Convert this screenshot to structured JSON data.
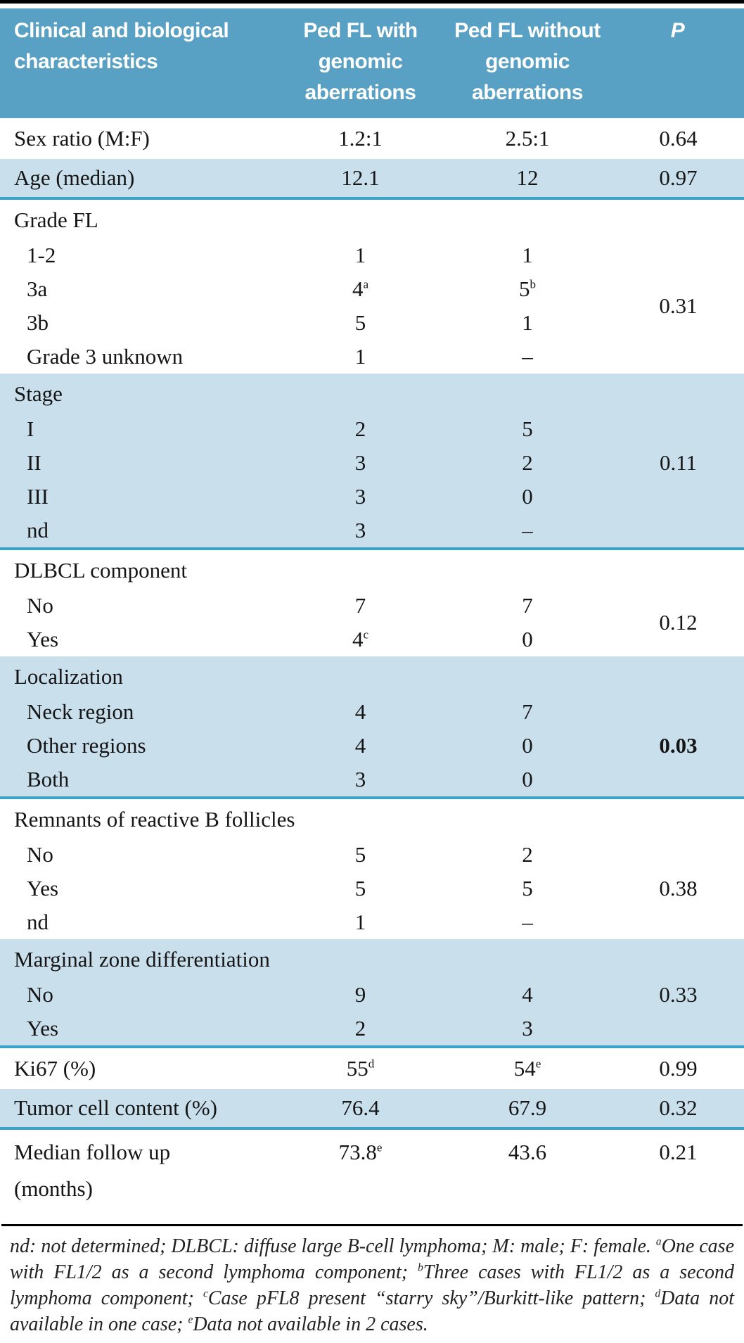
{
  "colors": {
    "header_bg": "#58a1c4",
    "row_blue": "#c9dfec",
    "rule_teal": "#3ba3c7",
    "rule_black": "#000000"
  },
  "table": {
    "header": {
      "characteristics": "Clinical and biological characteristics",
      "group_with": "Ped FL with genomic aberrations",
      "group_without": "Ped FL without genomic aberrations",
      "p": "P"
    },
    "sections": [
      {
        "label": "Sex ratio (M:F)",
        "v1": "1.2:1",
        "v2": "2.5:1",
        "p": "0.64"
      },
      {
        "label": "Age (median)",
        "v1": "12.1",
        "v2": "12",
        "p": "0.97"
      },
      {
        "label": "Grade FL",
        "p": "0.31",
        "rows": [
          {
            "label": "1-2",
            "v1": "1",
            "v2": "1"
          },
          {
            "label": "3a",
            "v1": "4",
            "v1_sup": "a",
            "v2": "5",
            "v2_sup": "b"
          },
          {
            "label": "3b",
            "v1": "5",
            "v2": "1"
          },
          {
            "label": "Grade 3 unknown",
            "v1": "1",
            "v2": "–"
          }
        ]
      },
      {
        "label": "Stage",
        "p": "0.11",
        "rows": [
          {
            "label": "I",
            "v1": "2",
            "v2": "5"
          },
          {
            "label": "II",
            "v1": "3",
            "v2": "2"
          },
          {
            "label": "III",
            "v1": "3",
            "v2": "0"
          },
          {
            "label": "nd",
            "v1": "3",
            "v2": "–"
          }
        ]
      },
      {
        "label": "DLBCL component",
        "p": "0.12",
        "rows": [
          {
            "label": "No",
            "v1": "7",
            "v2": "7"
          },
          {
            "label": "Yes",
            "v1": "4",
            "v1_sup": "c",
            "v2": "0"
          }
        ]
      },
      {
        "label": "Localization",
        "p": "0.03",
        "rows": [
          {
            "label": "Neck region",
            "v1": "4",
            "v2": "7"
          },
          {
            "label": "Other regions",
            "v1": "4",
            "v2": "0"
          },
          {
            "label": "Both",
            "v1": "3",
            "v2": "0"
          }
        ]
      },
      {
        "label": "Remnants of reactive B follicles",
        "p": "0.38",
        "rows": [
          {
            "label": "No",
            "v1": "5",
            "v2": "2"
          },
          {
            "label": "Yes",
            "v1": "5",
            "v2": "5"
          },
          {
            "label": "nd",
            "v1": "1",
            "v2": "–"
          }
        ]
      },
      {
        "label": "Marginal zone differentiation",
        "p": "0.33",
        "rows": [
          {
            "label": "No",
            "v1": "9",
            "v2": "4"
          },
          {
            "label": "Yes",
            "v1": "2",
            "v2": "3"
          }
        ]
      },
      {
        "label": "Ki67 (%)",
        "v1": "55",
        "v1_sup": "d",
        "v2": "54",
        "v2_sup": "e",
        "p": "0.99"
      },
      {
        "label": "Tumor cell content (%)",
        "v1": "76.4",
        "v2": "67.9",
        "p": "0.32"
      },
      {
        "label_line1": "Median follow up",
        "label_line2": "(months)",
        "v1": "73.8",
        "v1_sup": "e",
        "v2": "43.6",
        "p": "0.21"
      }
    ],
    "footnote": {
      "seg1": "nd: not determined; DLBCL: diffuse large B-cell lymphoma; M: male; F: female. ",
      "sup1": "a",
      "seg2": "One case with FL1/2 as a second lymphoma component; ",
      "sup2": "b",
      "seg3": "Three cases with FL1/2 as a second lymphoma component; ",
      "sup3": "c",
      "seg4": "Case pFL8 present “starry sky”/Burkitt-like pattern; ",
      "sup4": "d",
      "seg5": "Data not available in one case; ",
      "sup5": "e",
      "seg6": "Data not available in 2 cases."
    }
  }
}
